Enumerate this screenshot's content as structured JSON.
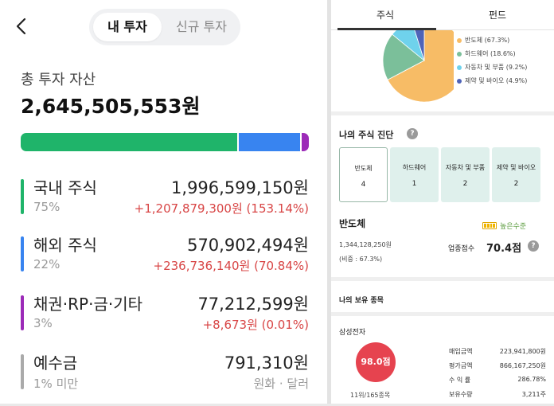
{
  "left": {
    "tabs": [
      "내 투자",
      "신규 투자"
    ],
    "total_label": "총 투자 자산",
    "total_value": "2,645,505,553원",
    "allocation_bar": [
      {
        "fraction": 0.75,
        "color": "#1fb46a"
      },
      {
        "fraction": 0.22,
        "color": "#3884f0"
      },
      {
        "fraction": 0.03,
        "color": "#9c2bb8"
      }
    ],
    "assets": [
      {
        "name": "국내 주식",
        "pct": "75%",
        "amount": "1,996,599,150원",
        "gain": "+1,207,879,300원 (153.14%)",
        "color": "#1fb46a"
      },
      {
        "name": "해외 주식",
        "pct": "22%",
        "amount": "570,902,494원",
        "gain": "+236,736,140원 (70.84%)",
        "color": "#3884f0"
      },
      {
        "name": "채권·RP·금·기타",
        "pct": "3%",
        "amount": "77,212,599원",
        "gain": "+8,673원 (0.01%)",
        "color": "#9c2bb8"
      },
      {
        "name": "예수금",
        "pct": "1% 미만",
        "amount": "791,310원",
        "gain": "원화 · 달러",
        "color": "#aaaaaa"
      }
    ]
  },
  "right": {
    "tabs": [
      "주식",
      "펀드"
    ],
    "pie": [
      {
        "label": "반도체 (67.3%)",
        "value": 67.3,
        "color": "#f7bc66"
      },
      {
        "label": "하드웨어 (18.6%)",
        "value": 18.6,
        "color": "#7bbf9a"
      },
      {
        "label": "자동차 및 부품 (9.2%)",
        "value": 9.2,
        "color": "#6fd2ec"
      },
      {
        "label": "제약 및 바이오 (4.9%)",
        "value": 4.9,
        "color": "#4f63b8"
      }
    ],
    "diag_title": "나의 주식 진단",
    "help_glyph": "?",
    "cards": [
      {
        "name": "반도체",
        "count": "4"
      },
      {
        "name": "하드웨어",
        "count": "1"
      },
      {
        "name": "자동차 및 부품",
        "count": "2"
      },
      {
        "name": "제약 및 바이오",
        "count": "2"
      }
    ],
    "sector_name": "반도체",
    "level_label": "높은수준",
    "sector_amount": "1,344,128,250원",
    "sector_weight": "(비중 : 67.3%)",
    "score_label": "업종점수",
    "score_value": "70.4점",
    "holdings_title": "나의 보유 종목",
    "stock_name": "삼성전자",
    "stock_score": "98.0점",
    "stock_rank": "11위/165종목",
    "details": [
      {
        "k": "매입금액",
        "v": "223,941,800원"
      },
      {
        "k": "평가금액",
        "v": "866,167,250원"
      },
      {
        "k": "수 익 률",
        "v": "286.78%"
      },
      {
        "k": "보유수량",
        "v": "3,211주"
      }
    ]
  }
}
